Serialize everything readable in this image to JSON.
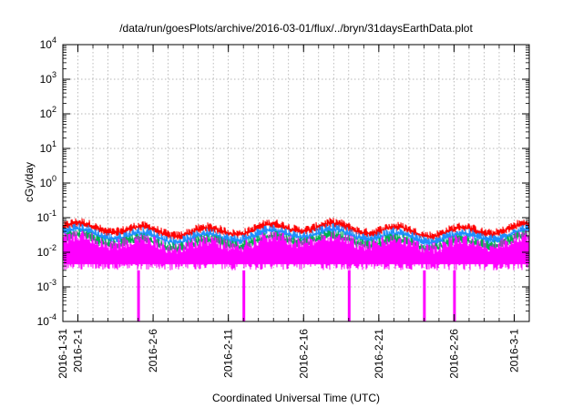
{
  "chart_data": {
    "type": "line",
    "title": "/data/run/goesPlots/archive/2016-03-01/flux/../bryn/31daysEarthData.plot",
    "xlabel": "Coordinated Universal Time (UTC)",
    "ylabel": "cGy/day",
    "y_scale": "log",
    "ylim": [
      0.0001,
      10000
    ],
    "xlim": [
      "2016-01-31",
      "2016-03-02"
    ],
    "grid": true,
    "y_ticks": [
      {
        "value": 0.0001,
        "base": "10",
        "exp": "-4"
      },
      {
        "value": 0.001,
        "base": "10",
        "exp": "-3"
      },
      {
        "value": 0.01,
        "base": "10",
        "exp": "-2"
      },
      {
        "value": 0.1,
        "base": "10",
        "exp": "-1"
      },
      {
        "value": 1,
        "base": "10",
        "exp": "0"
      },
      {
        "value": 10,
        "base": "10",
        "exp": "1"
      },
      {
        "value": 100,
        "base": "10",
        "exp": "2"
      },
      {
        "value": 1000,
        "base": "10",
        "exp": "3"
      },
      {
        "value": 10000,
        "base": "10",
        "exp": "4"
      }
    ],
    "x_tick_labels": [
      "2016-1-31",
      "2016-2-1",
      "2016-2-6",
      "2016-2-11",
      "2016-2-16",
      "2016-2-21",
      "2016-2-26",
      "2016-3-1"
    ],
    "x_tick_dates": [
      "2016-01-31",
      "2016-02-01",
      "2016-02-06",
      "2016-02-11",
      "2016-02-16",
      "2016-02-21",
      "2016-02-26",
      "2016-03-01"
    ],
    "series": [
      {
        "color": "#ff0000",
        "baseline": 0.045,
        "spike_max": 0.065
      },
      {
        "color": "#1f8fff",
        "baseline": 0.03,
        "spike_max": 0.045
      },
      {
        "color": "#00b050",
        "baseline": 0.02,
        "spike_max": 0.03
      },
      {
        "color": "#ff00ff",
        "baseline": 0.007,
        "min": 0.003,
        "max": 0.03
      }
    ],
    "dropouts": [
      "2016-02-05",
      "2016-02-12",
      "2016-02-19",
      "2016-02-24",
      "2016-02-26"
    ]
  }
}
